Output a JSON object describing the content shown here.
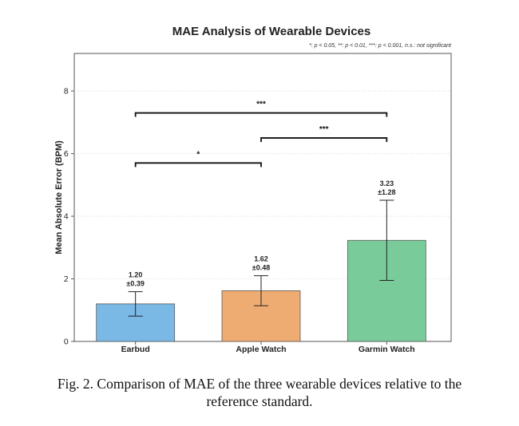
{
  "chart_data": {
    "type": "bar",
    "title": "MAE Analysis of Wearable Devices",
    "subtitle": "*: p < 0.05, **: p < 0.01, ***: p < 0.001, n.s.: not significant",
    "xlabel": "",
    "ylabel": "Mean Absolute Error (BPM)",
    "ylim": [
      0,
      9.2
    ],
    "yticks": [
      0,
      2,
      4,
      6,
      8
    ],
    "grid": true,
    "categories": [
      "Earbud",
      "Apple Watch",
      "Garmin Watch"
    ],
    "values": [
      1.2,
      1.62,
      3.23
    ],
    "errors": [
      0.39,
      0.48,
      1.28
    ],
    "value_labels": [
      "1.20",
      "1.62",
      "3.23"
    ],
    "error_labels": [
      "±0.39",
      "±0.48",
      "±1.28"
    ],
    "colors": [
      "#7ab8e6",
      "#eeac72",
      "#79cc99"
    ],
    "significance": [
      {
        "from": 0,
        "to": 1,
        "y": 5.7,
        "label": "*"
      },
      {
        "from": 1,
        "to": 2,
        "y": 6.5,
        "label": "***"
      },
      {
        "from": 0,
        "to": 2,
        "y": 7.3,
        "label": "***"
      }
    ]
  },
  "caption": {
    "line1": "Fig. 2. Comparison of MAE of the three wearable devices relative to the",
    "line2": "reference standard."
  }
}
